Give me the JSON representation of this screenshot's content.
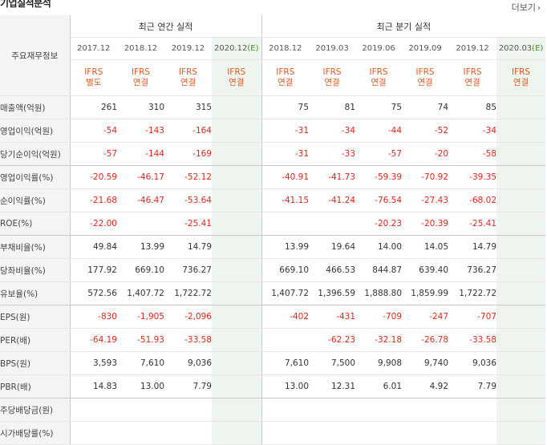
{
  "header": {
    "title": "기업실적분석",
    "more_label": "더보기"
  },
  "table": {
    "label_header": "주요재무정보",
    "annual_group": "최근 연간 실적",
    "quarter_group": "최근 분기 실적",
    "annual_periods": [
      {
        "period": "2017.12",
        "est": "",
        "std": "IFRS",
        "scope": "별도"
      },
      {
        "period": "2018.12",
        "est": "",
        "std": "IFRS",
        "scope": "연결"
      },
      {
        "period": "2019.12",
        "est": "",
        "std": "IFRS",
        "scope": "연결"
      },
      {
        "period": "2020.12",
        "est": "(E)",
        "std": "IFRS",
        "scope": "연결"
      }
    ],
    "quarter_periods": [
      {
        "period": "2018.12",
        "est": "",
        "std": "IFRS",
        "scope": "연결"
      },
      {
        "period": "2019.03",
        "est": "",
        "std": "IFRS",
        "scope": "연결"
      },
      {
        "period": "2019.06",
        "est": "",
        "std": "IFRS",
        "scope": "연결"
      },
      {
        "period": "2019.09",
        "est": "",
        "std": "IFRS",
        "scope": "연결"
      },
      {
        "period": "2019.12",
        "est": "",
        "std": "IFRS",
        "scope": "연결"
      },
      {
        "period": "2020.03",
        "est": "(E)",
        "std": "IFRS",
        "scope": "연결"
      }
    ],
    "rows": [
      {
        "label": "매출액(억원)",
        "annual": [
          "261",
          "310",
          "315",
          ""
        ],
        "quarter": [
          "75",
          "81",
          "75",
          "74",
          "85",
          ""
        ]
      },
      {
        "label": "영업이익(억원)",
        "annual": [
          "-54",
          "-143",
          "-164",
          ""
        ],
        "quarter": [
          "-31",
          "-34",
          "-44",
          "-52",
          "-34",
          ""
        ]
      },
      {
        "label": "당기순이익(억원)",
        "annual": [
          "-57",
          "-144",
          "-169",
          ""
        ],
        "quarter": [
          "-31",
          "-33",
          "-57",
          "-20",
          "-58",
          ""
        ]
      },
      {
        "label": "영업이익률(%)",
        "annual": [
          "-20.59",
          "-46.17",
          "-52.12",
          ""
        ],
        "quarter": [
          "-40.91",
          "-41.73",
          "-59.39",
          "-70.92",
          "-39.35",
          ""
        ]
      },
      {
        "label": "순이익률(%)",
        "annual": [
          "-21.68",
          "-46.47",
          "-53.64",
          ""
        ],
        "quarter": [
          "-41.15",
          "-41.24",
          "-76.54",
          "-27.43",
          "-68.02",
          ""
        ]
      },
      {
        "label": "ROE(%)",
        "annual": [
          "-22.00",
          "",
          "-25.41",
          ""
        ],
        "quarter": [
          "",
          "",
          "-20.23",
          "-20.39",
          "-25.41",
          ""
        ]
      },
      {
        "label": "부채비율(%)",
        "annual": [
          "49.84",
          "13.99",
          "14.79",
          ""
        ],
        "quarter": [
          "13.99",
          "19.64",
          "14.00",
          "14.05",
          "14.79",
          ""
        ]
      },
      {
        "label": "당좌비율(%)",
        "annual": [
          "177.92",
          "669.10",
          "736.27",
          ""
        ],
        "quarter": [
          "669.10",
          "466.53",
          "844.87",
          "639.40",
          "736.27",
          ""
        ]
      },
      {
        "label": "유보율(%)",
        "annual": [
          "572.56",
          "1,407.72",
          "1,722.72",
          ""
        ],
        "quarter": [
          "1,407.72",
          "1,396.59",
          "1,888.80",
          "1,859.99",
          "1,722.72",
          ""
        ]
      },
      {
        "label": "EPS(원)",
        "annual": [
          "-830",
          "-1,905",
          "-2,096",
          ""
        ],
        "quarter": [
          "-402",
          "-431",
          "-709",
          "-247",
          "-707",
          ""
        ]
      },
      {
        "label": "PER(배)",
        "annual": [
          "-64.19",
          "-51.93",
          "-33.58",
          ""
        ],
        "quarter": [
          "",
          "-62.23",
          "-32.18",
          "-26.78",
          "-33.58",
          ""
        ]
      },
      {
        "label": "BPS(원)",
        "annual": [
          "3,593",
          "7,610",
          "9,036",
          ""
        ],
        "quarter": [
          "7,610",
          "7,500",
          "9,908",
          "9,740",
          "9,036",
          ""
        ]
      },
      {
        "label": "PBR(배)",
        "annual": [
          "14.83",
          "13.00",
          "7.79",
          ""
        ],
        "quarter": [
          "13.00",
          "12.31",
          "6.01",
          "4.92",
          "7.79",
          ""
        ]
      },
      {
        "label": "주당배당금(원)",
        "annual": [
          "",
          "",
          "",
          ""
        ],
        "quarter": [
          "",
          "",
          "",
          "",
          "",
          ""
        ]
      },
      {
        "label": "시가배당률(%)",
        "annual": [
          "",
          "",
          "",
          ""
        ],
        "quarter": [
          "",
          "",
          "",
          "",
          "",
          ""
        ]
      }
    ],
    "group_end_rows": [
      2,
      5,
      8,
      12
    ],
    "colors": {
      "negative": "#e0251b",
      "ifrs": "#e2571e",
      "estimate_bg": "#eef5ee"
    }
  }
}
